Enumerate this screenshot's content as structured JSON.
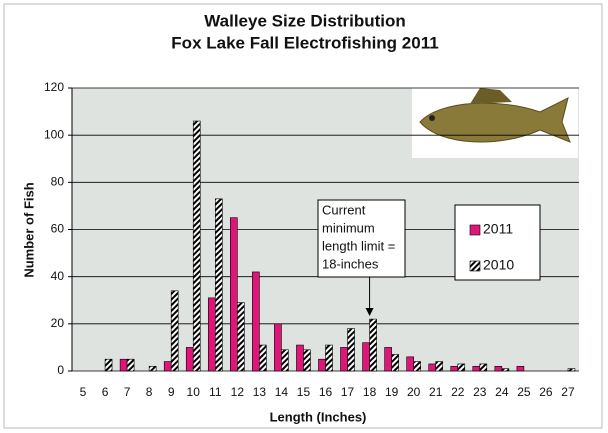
{
  "chart_data": {
    "type": "bar",
    "title": "Walleye Size Distribution",
    "subtitle": "Fox Lake Fall Electrofishing 2011",
    "x_label": "Length (Inches)",
    "y_label": "Number of Fish",
    "categories": [
      "5",
      "6",
      "7",
      "8",
      "9",
      "10",
      "11",
      "12",
      "13",
      "14",
      "15",
      "16",
      "17",
      "18",
      "19",
      "20",
      "21",
      "22",
      "23",
      "24",
      "25",
      "26",
      "27"
    ],
    "series": [
      {
        "name": "2011",
        "color": "#e0157a",
        "pattern": "solid",
        "values": [
          0,
          0,
          5,
          0,
          4,
          10,
          31,
          65,
          42,
          20,
          11,
          5,
          10,
          12,
          10,
          6,
          3,
          2,
          2,
          2,
          2,
          0,
          0
        ]
      },
      {
        "name": "2010",
        "color": "#000000",
        "pattern": "hatch",
        "values": [
          0,
          5,
          5,
          2,
          34,
          106,
          73,
          29,
          11,
          9,
          9,
          11,
          18,
          22,
          7,
          4,
          4,
          3,
          3,
          1,
          0,
          0,
          1
        ]
      }
    ],
    "ylim": [
      0,
      120
    ],
    "yticks": [
      0,
      20,
      40,
      60,
      80,
      100,
      120
    ],
    "grid": true,
    "annotation": {
      "lines": [
        "Current",
        "minimum",
        "length limit =",
        "18-inches"
      ],
      "category": "18"
    }
  }
}
